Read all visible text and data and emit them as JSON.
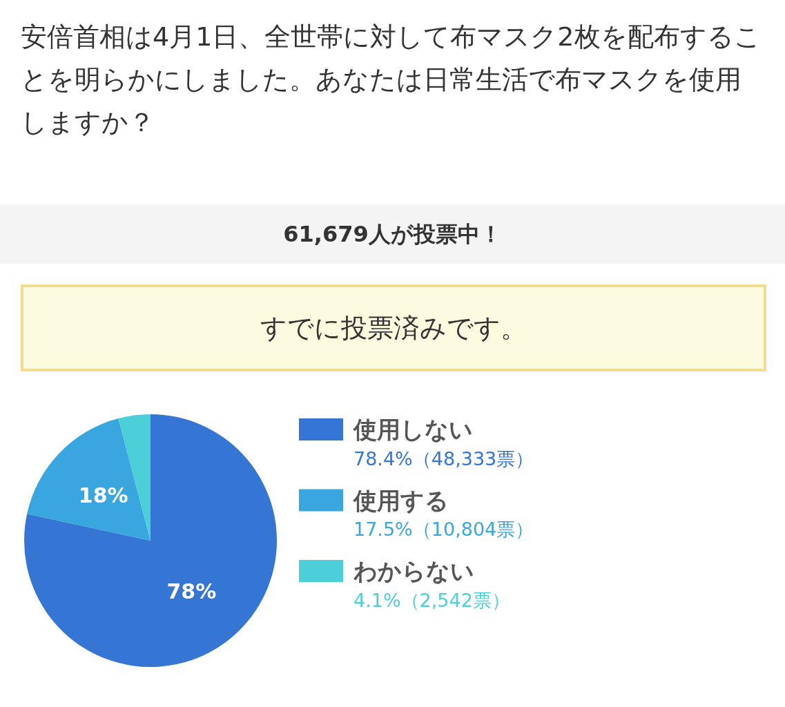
{
  "chart_data": {
    "type": "pie",
    "title": "安倍首相は4月1日、全世帯に対して布マスク2枚を配布することを明らかにしました。あなたは日常生活で布マスクを使用しますか？",
    "subtitle": "61,679人が投票中！",
    "categories": [
      "使用しない",
      "使用する",
      "わからない"
    ],
    "values": [
      78.4,
      17.5,
      4.1
    ],
    "colors": [
      "#3575d3",
      "#3aa6e0",
      "#4dcfd9"
    ],
    "value_labels": [
      "78%",
      "18%",
      null
    ],
    "annotations": [
      "78.4%（48,333票）",
      "17.5%（10,804票）",
      "4.1%（2,542票）",
      "すでに投票済みです。"
    ],
    "legend": "right"
  }
}
